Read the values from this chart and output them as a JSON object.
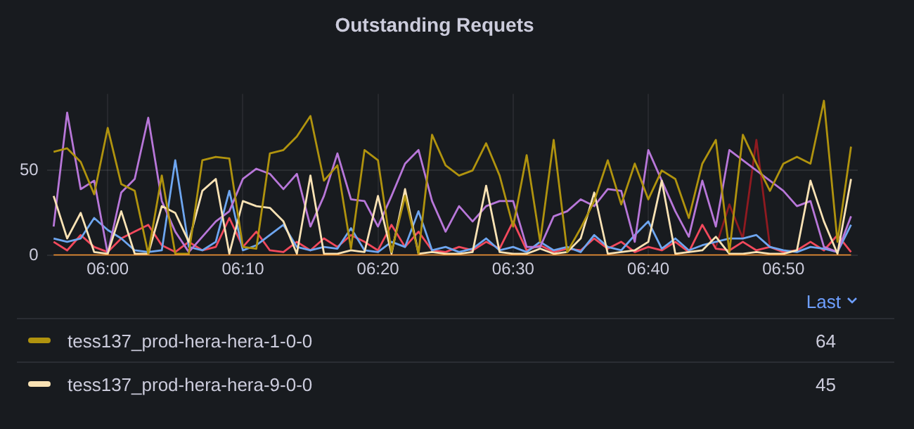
{
  "chart_data": {
    "type": "line",
    "title": "Outstanding Requets",
    "legend_title": "Last",
    "legend": "bottom",
    "grid": true,
    "x": [
      5.9333,
      5.95,
      5.9667,
      5.9833,
      6,
      6.0167,
      6.0333,
      6.05,
      6.0667,
      6.0833,
      6.1,
      6.1167,
      6.1333,
      6.15,
      6.1667,
      6.1833,
      6.2,
      6.2167,
      6.2333,
      6.25,
      6.2667,
      6.2833,
      6.3,
      6.3167,
      6.3333,
      6.35,
      6.3667,
      6.3833,
      6.4,
      6.4167,
      6.4333,
      6.45,
      6.4667,
      6.4833,
      6.5,
      6.5167,
      6.5333,
      6.55,
      6.5667,
      6.5833,
      6.6,
      6.6167,
      6.6333,
      6.65,
      6.6667,
      6.6833,
      6.7,
      6.7167,
      6.7333,
      6.75,
      6.7667,
      6.7833,
      6.8,
      6.8167,
      6.8333,
      6.85,
      6.8667,
      6.8833,
      6.9,
      6.9167
    ],
    "xlim": [
      5.925,
      6.925
    ],
    "xticks": [
      {
        "value": 6,
        "label": "06:00"
      },
      {
        "value": 6.1667,
        "label": "06:10"
      },
      {
        "value": 6.3333,
        "label": "06:20"
      },
      {
        "value": 6.5,
        "label": "06:30"
      },
      {
        "value": 6.6667,
        "label": "06:40"
      },
      {
        "value": 6.8333,
        "label": "06:50"
      }
    ],
    "ylim": [
      0,
      95
    ],
    "yticks": [
      0,
      50
    ],
    "series": [
      {
        "color": "#8f1a20",
        "values": [
          null,
          null,
          null,
          null,
          null,
          null,
          null,
          null,
          null,
          null,
          null,
          null,
          null,
          null,
          null,
          null,
          null,
          null,
          null,
          null,
          null,
          null,
          null,
          null,
          null,
          null,
          null,
          null,
          null,
          null,
          null,
          null,
          null,
          null,
          null,
          null,
          null,
          null,
          null,
          null,
          null,
          null,
          null,
          null,
          null,
          null,
          null,
          null,
          null,
          5,
          30,
          10,
          68,
          5,
          null,
          null,
          null,
          null,
          null,
          null
        ]
      },
      {
        "color": "#f2495c",
        "values": [
          8,
          3,
          12,
          5,
          2,
          10,
          14,
          18,
          6,
          2,
          8,
          3,
          5,
          22,
          5,
          14,
          3,
          2,
          8,
          3,
          10,
          5,
          12,
          8,
          3,
          18,
          5,
          14,
          3,
          2,
          5,
          3,
          8,
          4,
          20,
          3,
          6,
          2,
          4,
          3,
          10,
          4,
          8,
          2,
          5,
          3,
          8,
          2,
          18,
          4,
          3,
          8,
          3,
          5,
          2,
          3,
          8,
          3,
          12,
          2
        ]
      },
      {
        "color": "#6ea6f0",
        "values": [
          10,
          8,
          10,
          22,
          15,
          10,
          3,
          2,
          3,
          56,
          5,
          3,
          8,
          38,
          3,
          6,
          12,
          18,
          5,
          3,
          5,
          4,
          16,
          3,
          2,
          8,
          5,
          26,
          3,
          5,
          2,
          4,
          10,
          3,
          5,
          2,
          8,
          3,
          5,
          2,
          12,
          5,
          3,
          12,
          20,
          4,
          10,
          3,
          6,
          8,
          10,
          10,
          12,
          5,
          3,
          2,
          5,
          4,
          2,
          18
        ]
      },
      {
        "color": "#b877d9",
        "values": [
          17,
          84,
          39,
          44,
          1,
          37,
          45,
          81,
          32,
          14,
          2,
          11,
          20,
          26,
          45,
          51,
          48,
          39,
          48,
          17,
          35,
          60,
          33,
          32,
          17,
          35,
          54,
          62,
          32,
          14,
          29,
          20,
          29,
          32,
          32,
          5,
          5,
          23,
          26,
          33,
          29,
          39,
          38,
          8,
          62,
          44,
          26,
          11,
          44,
          17,
          62,
          56,
          50,
          44,
          38,
          29,
          32,
          5,
          2,
          23
        ]
      },
      {
        "name": "tess137_prod-hera-hera-9-0-0",
        "color": "#f9e2b4",
        "values": [
          35,
          10,
          25,
          2,
          1,
          26,
          1,
          1,
          29,
          25,
          8,
          38,
          45,
          1,
          32,
          29,
          28,
          20,
          1,
          47,
          1,
          1,
          3,
          2,
          35,
          1,
          39,
          1,
          2,
          1,
          1,
          2,
          41,
          2,
          1,
          1,
          4,
          1,
          2,
          10,
          37,
          1,
          2,
          3,
          8,
          44,
          1,
          2,
          3,
          11,
          1,
          1,
          2,
          1,
          1,
          3,
          44,
          20,
          1,
          45
        ]
      },
      {
        "name": "tess137_prod-hera-hera-1-0-0",
        "color": "#b0930e",
        "values": [
          61,
          63,
          55,
          36,
          75,
          42,
          38,
          1,
          47,
          1,
          1,
          56,
          58,
          57,
          5,
          4,
          60,
          62,
          70,
          82,
          44,
          53,
          4,
          62,
          56,
          2,
          35,
          1,
          71,
          53,
          47,
          50,
          66,
          47,
          17,
          59,
          8,
          68,
          2,
          16,
          32,
          56,
          30,
          54,
          33,
          50,
          45,
          22,
          54,
          68,
          2,
          71,
          54,
          38,
          54,
          58,
          54,
          91,
          8,
          64
        ]
      },
      {
        "color": "#ff9830",
        "values": [
          0,
          0,
          0,
          0,
          0,
          0,
          0,
          0,
          0,
          0,
          0,
          0,
          0,
          0,
          0,
          0,
          0,
          0,
          0,
          0,
          0,
          0,
          0,
          0,
          0,
          0,
          0,
          0,
          0,
          0,
          0,
          0,
          0,
          0,
          0,
          0,
          0,
          0,
          0,
          0,
          0,
          0,
          0,
          0,
          0,
          0,
          0,
          0,
          0,
          0,
          0,
          0,
          0,
          0,
          0,
          0,
          0,
          0,
          0,
          0
        ]
      }
    ],
    "annotations": [
      "45",
      "64"
    ]
  }
}
